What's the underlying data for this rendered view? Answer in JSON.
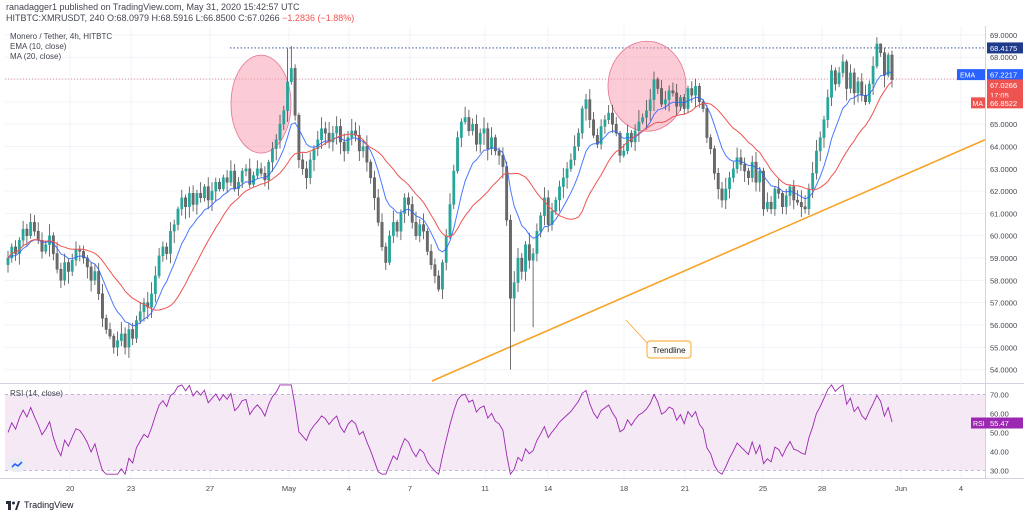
{
  "header": {
    "publisher_line": "ranadagger1 published on TradingView.com, May 31, 2020 15:42:57 UTC",
    "ticker_line_prefix": "HITBTC:XMRUSDT, 240 O:68.0979 H:68.5916 L:66.8500 C:67.0266",
    "change": "−1.2836 (−1.88%)",
    "pair_line": "Monero / Tether, 4h, HITBTC",
    "ema_line": "EMA (10, close)",
    "ma_line": "MA (20, close)",
    "rsi_line": "RSI (14, close)"
  },
  "footer": {
    "brand": "TradingView"
  },
  "annotations": {
    "trendline_label": "Trendline"
  },
  "colors": {
    "up": "#26a69a",
    "down": "#ef5350",
    "candle": "#26a69a",
    "ema": "#2962ff",
    "ma": "#ef5350",
    "trendline": "#f7a325",
    "rsi": "#9c27b0",
    "rsi_band": "#f3e5f5",
    "circle": "#f8a0b5"
  },
  "chart_data": [
    {
      "type": "candlestick",
      "title": "Monero / Tether, 4h, HITBTC",
      "x_tick_labels": [
        "20",
        "23",
        "27",
        "May",
        "4",
        "7",
        "11",
        "14",
        "18",
        "21",
        "25",
        "28",
        "Jun",
        "4"
      ],
      "y_tick_labels": [
        "54.0000",
        "55.0000",
        "56.0000",
        "57.0000",
        "58.0000",
        "59.0000",
        "60.0000",
        "61.0000",
        "62.0000",
        "63.0000",
        "64.0000",
        "65.0000",
        "66.0000",
        "67.0000",
        "68.0000",
        "69.0000"
      ],
      "ylim": [
        53.4,
        69.4
      ],
      "price_levels": {
        "resistance": 68.4175,
        "last": 67.0266,
        "ema": 67.2217,
        "ma": 66.8522,
        "countdown": "17:05"
      },
      "axis_badges": {
        "resistance": "68.4175",
        "ema_label": "EMA",
        "ema_value": "67.2217",
        "last": "67.0266",
        "countdown": "17:05",
        "ma_label": "MA",
        "ma_value": "66.8522"
      },
      "series": [
        {
          "key": "close",
          "values": [
            59.0,
            59.5,
            59.2,
            59.8,
            60.3,
            60.0,
            60.6,
            60.2,
            59.8,
            59.3,
            59.6,
            60.0,
            59.2,
            58.5,
            58.0,
            58.8,
            58.4,
            58.9,
            59.4,
            59.3,
            59.0,
            58.6,
            58.0,
            58.4,
            57.4,
            56.3,
            55.8,
            55.5,
            55.0,
            55.3,
            55.6,
            55.0,
            55.8,
            55.4,
            56.2,
            56.6,
            57.0,
            56.8,
            57.4,
            58.2,
            59.1,
            59.5,
            59.2,
            60.2,
            60.5,
            61.2,
            61.7,
            61.3,
            61.9,
            61.4,
            61.9,
            61.7,
            62.2,
            61.6,
            62.0,
            62.4,
            62.1,
            62.6,
            62.4,
            62.9,
            62.1,
            62.4,
            62.9,
            63.0,
            62.3,
            62.7,
            63.0,
            62.8,
            62.5,
            63.3,
            63.9,
            64.3,
            65.0,
            65.6,
            66.9,
            67.5,
            65.4,
            63.4,
            63.0,
            62.6,
            63.4,
            63.9,
            64.3,
            64.8,
            64.6,
            64.2,
            64.6,
            64.9,
            64.2,
            63.8,
            64.4,
            64.7,
            64.5,
            63.8,
            64.0,
            63.3,
            62.6,
            61.7,
            60.6,
            59.5,
            58.8,
            60.0,
            60.6,
            60.2,
            61.0,
            61.7,
            61.4,
            60.6,
            60.0,
            60.5,
            60.2,
            59.3,
            58.7,
            58.2,
            57.6,
            58.8,
            60.0,
            61.4,
            62.9,
            64.4,
            65.1,
            65.3,
            64.7,
            65.0,
            64.1,
            64.6,
            64.8,
            63.9,
            64.4,
            63.8,
            63.6,
            63.1,
            60.7,
            57.2,
            57.9,
            59.0,
            58.4,
            59.6,
            58.9,
            59.2,
            60.2,
            60.9,
            61.7,
            60.5,
            61.1,
            61.6,
            62.2,
            62.6,
            63.0,
            63.4,
            64.0,
            64.6,
            65.7,
            66.1,
            65.2,
            64.5,
            64.1,
            64.9,
            65.2,
            65.5,
            65.0,
            64.6,
            63.6,
            63.8,
            64.6,
            64.2,
            64.7,
            65.1,
            65.3,
            65.6,
            66.1,
            67.0,
            66.6,
            65.9,
            66.1,
            66.5,
            66.4,
            65.8,
            66.2,
            65.7,
            66.6,
            66.3,
            66.7,
            66.0,
            65.7,
            64.4,
            63.9,
            62.8,
            62.1,
            61.6,
            62.1,
            62.6,
            63.0,
            63.5,
            63.2,
            62.9,
            62.6,
            63.3,
            62.4,
            62.9,
            61.2,
            61.5,
            61.2,
            62.1,
            61.9,
            61.3,
            61.8,
            62.2,
            61.6,
            61.5,
            61.3,
            61.2,
            62.1,
            62.8,
            63.8,
            64.4,
            65.2,
            66.2,
            67.4,
            66.8,
            67.3,
            67.8,
            66.6,
            67.3,
            66.4,
            66.9,
            66.3,
            66.0,
            66.8,
            67.6,
            68.6,
            68.2,
            67.2,
            68.1,
            67.0
          ]
        }
      ],
      "trendline": {
        "label": "Trendline"
      },
      "xlabel": "",
      "ylabel": "",
      "grid": true,
      "legend": "top-left"
    },
    {
      "type": "line",
      "title": "RSI (14, close)",
      "y_tick_labels": [
        "30.00",
        "40.00",
        "50.00",
        "60.00",
        "70.00"
      ],
      "ylim": [
        26,
        76
      ],
      "band": [
        30,
        70
      ],
      "last_label": "RSI",
      "last_value": "55.47",
      "last": 55.47,
      "grid": true
    }
  ]
}
